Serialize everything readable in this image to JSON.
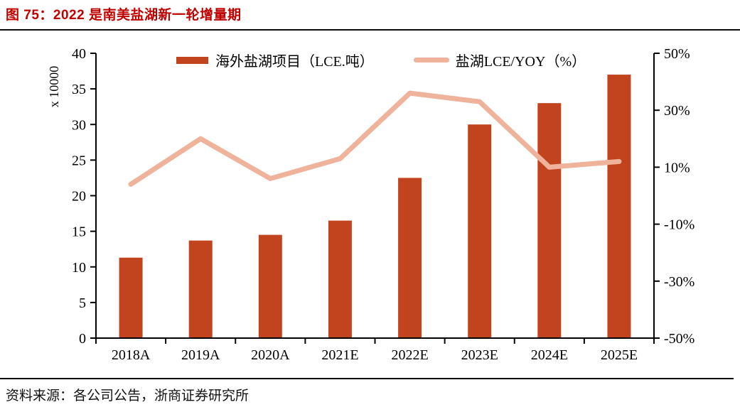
{
  "header": {
    "title": "图 75：2022 是南美盐湖新一轮增量期"
  },
  "footer": {
    "source": "资料来源：各公司公告，浙商证券研究所"
  },
  "colors": {
    "title_red": "#c00000",
    "bar": "#c2441f",
    "line": "#efb29a",
    "axis": "#000000"
  },
  "chart_data": {
    "type": "combo",
    "categories": [
      "2018A",
      "2019A",
      "2020A",
      "2021E",
      "2022E",
      "2023E",
      "2024E",
      "2025E"
    ],
    "series": [
      {
        "name": "海外盐湖项目（LCE.吨）",
        "type": "bar",
        "axis": "left",
        "color": "#c2441f",
        "values": [
          11.3,
          13.7,
          14.5,
          16.5,
          22.5,
          30,
          33,
          37
        ]
      },
      {
        "name": "盐湖LCE/YOY（%）",
        "type": "line",
        "axis": "right",
        "color": "#efb29a",
        "values": [
          4,
          20,
          6,
          13,
          36,
          33,
          10,
          12
        ]
      }
    ],
    "left_axis": {
      "min": 0,
      "max": 40,
      "step": 5,
      "unit_label": "x 10000",
      "tick_labels": [
        "0",
        "5",
        "10",
        "15",
        "20",
        "25",
        "30",
        "35",
        "40"
      ]
    },
    "right_axis": {
      "min": -50,
      "max": 50,
      "step": 20,
      "suffix": "%",
      "tick_labels": [
        "50%",
        "30%",
        "10%",
        "-10%",
        "-30%",
        "-50%"
      ]
    },
    "grid": false,
    "legend_position": "top-center-inside"
  }
}
